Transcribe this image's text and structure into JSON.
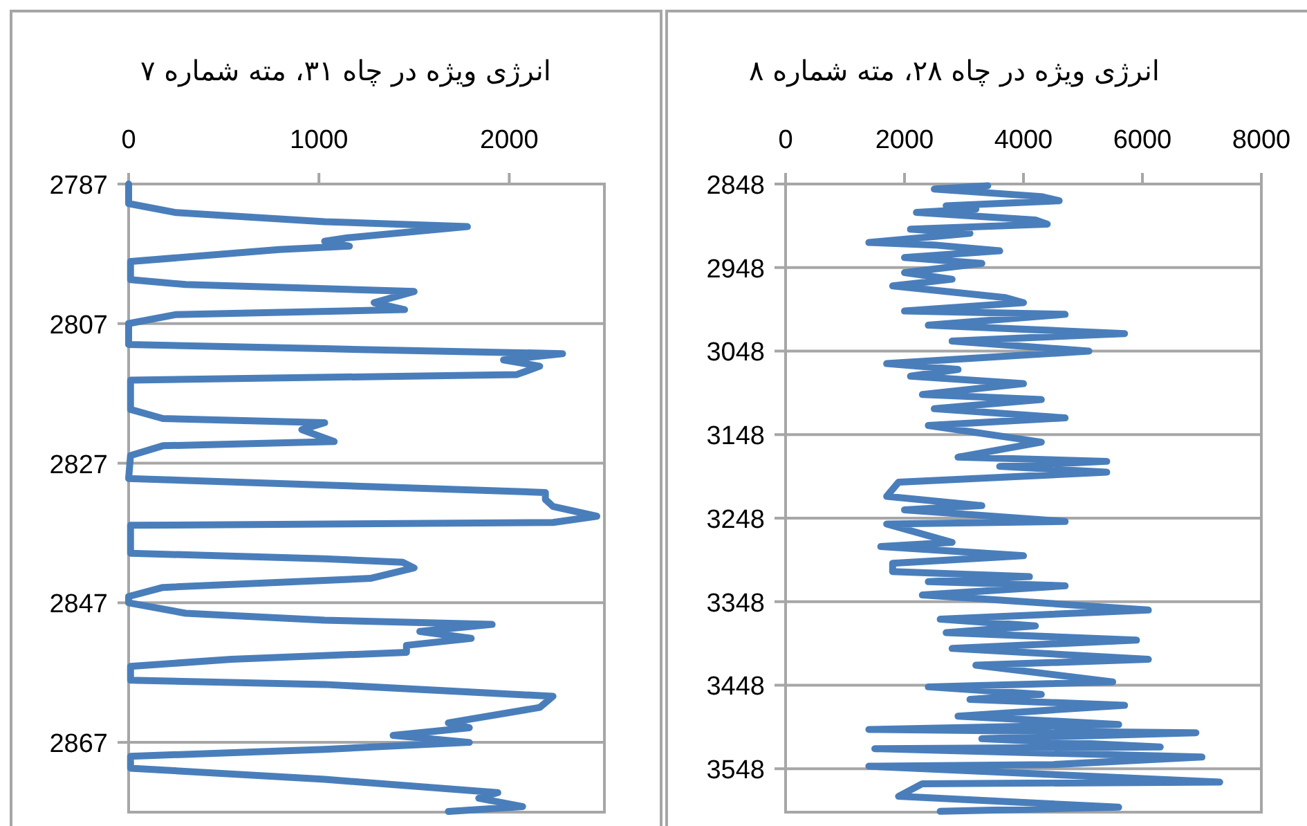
{
  "chart_data": [
    {
      "type": "line",
      "title": "انرژی ویژه در چاه ۳۱، مته شماره ۷",
      "orientation": "horizontal",
      "grid": "y",
      "xlim": [
        0,
        2500
      ],
      "xticks": [
        0,
        1000,
        2000
      ],
      "ylim": [
        2877,
        2787
      ],
      "yticks": [
        2787,
        2807,
        2827,
        2847,
        2867
      ],
      "series": [
        {
          "color": "#4a7ebb",
          "x": [
            2787,
            2789.8,
            2791.1,
            2792.4,
            2793.1,
            2794.7,
            2795.2,
            2795.9,
            2796.4,
            2798.1,
            2800.7,
            2801.4,
            2802.0,
            2802.4,
            2804.0,
            2805.0,
            2805.7,
            2807,
            2810,
            2810.6,
            2811.3,
            2812.2,
            2813.1,
            2814.3,
            2815.1,
            2819.3,
            2820.6,
            2821.2,
            2822.2,
            2823.9,
            2824.5,
            2825.9,
            2829.2,
            2831.2,
            2832.2,
            2833.2,
            2834.6,
            2835.5,
            2835.9,
            2839.9,
            2840.7,
            2841.2,
            2842.0,
            2843.5,
            2844.8,
            2846.1,
            2847,
            2848.5,
            2849.5,
            2850.1,
            2851.1,
            2852.1,
            2853.1,
            2854.1,
            2855.1,
            2856.1,
            2858.1,
            2858.7,
            2860.4,
            2862.0,
            2864.2,
            2864.9,
            2866.0,
            2867,
            2868.0,
            2869.0,
            2870.7,
            2872.3,
            2874.2,
            2875.0,
            2876.2,
            2876.9
          ],
          "values": [
            0,
            0,
            250,
            1030,
            1780,
            1150,
            1030,
            1160,
            790,
            10,
            10,
            300,
            1030,
            1500,
            1290,
            1450,
            250,
            0,
            0,
            1030,
            2280,
            1970,
            2160,
            2040,
            10,
            10,
            180,
            1030,
            910,
            1080,
            180,
            10,
            0,
            2190,
            2190,
            2230,
            2460,
            2230,
            10,
            10,
            1030,
            1440,
            1500,
            1270,
            180,
            0,
            0,
            300,
            1030,
            1910,
            1530,
            1800,
            1460,
            1460,
            540,
            10,
            10,
            1030,
            2230,
            2160,
            1680,
            1790,
            1390,
            1790,
            1030,
            10,
            10,
            1030,
            1940,
            1840,
            2070,
            1680
          ]
        }
      ]
    },
    {
      "type": "line",
      "title": "انرژی ویژه در چاه ۲۸، مته شماره ۸",
      "orientation": "horizontal",
      "grid": "y",
      "xlim": [
        0,
        8000
      ],
      "xticks": [
        0,
        2000,
        4000,
        6000,
        8000
      ],
      "ylim": [
        3600,
        2848
      ],
      "yticks": [
        2848,
        2948,
        3048,
        3148,
        3248,
        3348,
        3448,
        3548
      ],
      "series": [
        {
          "color": "#4a7ebb",
          "x": [
            2850,
            2854,
            2863,
            2868,
            2874,
            2878,
            2882,
            2891,
            2896,
            2902,
            2907,
            2918,
            2921,
            2928,
            2936,
            2943,
            2954,
            2962,
            2970,
            2984,
            2990,
            3000,
            3004,
            3017,
            3027,
            3036,
            3048,
            3063,
            3070,
            3078,
            3087,
            3100,
            3106,
            3117,
            3128,
            3137,
            3157,
            3175,
            3180,
            3186,
            3193,
            3205,
            3222,
            3233,
            3238,
            3252,
            3255,
            3277,
            3282,
            3293,
            3302,
            3312,
            3318,
            3324,
            3329,
            3340,
            3358,
            3369,
            3377,
            3385,
            3394,
            3404,
            3417,
            3424,
            3444,
            3450,
            3459,
            3465,
            3472,
            3485,
            3495,
            3501,
            3505,
            3512,
            3522,
            3524,
            3534,
            3543,
            3545,
            3564,
            3566,
            3581,
            3594,
            3599
          ],
          "values": [
            3400,
            2500,
            4300,
            4600,
            2700,
            3200,
            2200,
            4200,
            4400,
            2100,
            3100,
            1400,
            2500,
            3600,
            2000,
            3300,
            2000,
            2800,
            1800,
            3700,
            4000,
            2000,
            4700,
            2400,
            5700,
            2800,
            5100,
            1700,
            2900,
            2100,
            4000,
            2300,
            4300,
            2500,
            4700,
            2400,
            4300,
            2900,
            5400,
            3600,
            5400,
            1900,
            1700,
            3300,
            2000,
            4700,
            1700,
            2800,
            1600,
            4000,
            1800,
            1800,
            4100,
            2400,
            4700,
            2300,
            6100,
            2600,
            4200,
            2700,
            5900,
            2800,
            6100,
            3200,
            5500,
            2400,
            4300,
            3100,
            5700,
            2900,
            5600,
            1400,
            6900,
            3300,
            6300,
            1500,
            7000,
            4500,
            1400,
            7300,
            2300,
            1900,
            5600,
            2600
          ]
        }
      ]
    }
  ]
}
